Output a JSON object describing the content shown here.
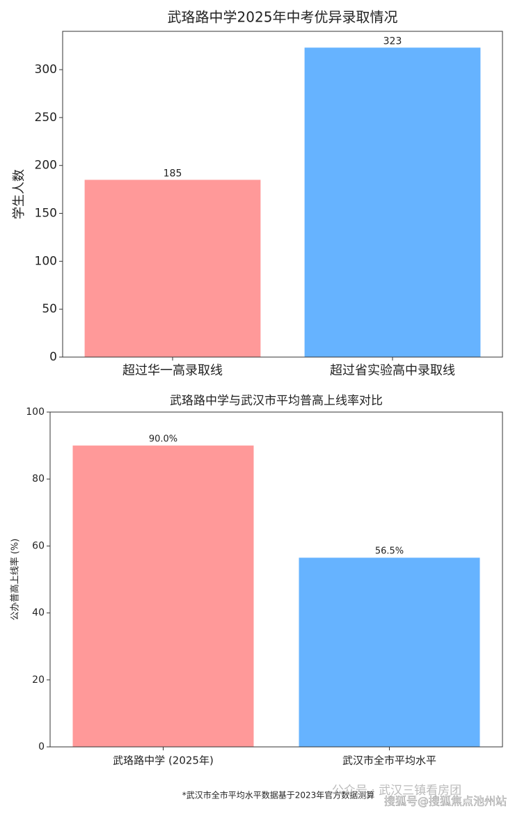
{
  "chart_data": [
    {
      "type": "bar",
      "title": "武珞路中学2025年中考优异录取情况",
      "y_label": "学生人数",
      "categories": [
        "超过华一高录取线",
        "超过省实验高中录取线"
      ],
      "values": [
        185,
        323
      ],
      "colors": [
        "#ff9999",
        "#66b3ff"
      ],
      "ylim": [
        0,
        340
      ],
      "yticks": [
        0,
        50,
        100,
        150,
        200,
        250,
        300
      ]
    },
    {
      "type": "bar",
      "title": "武珞路中学与武汉市平均普高上线率对比",
      "y_label": "公办普高上线率 (%)",
      "categories": [
        "武珞路中学 (2025年)",
        "武汉市全市平均水平"
      ],
      "values": [
        90.0,
        56.5
      ],
      "value_labels": [
        "90.0%",
        "56.5%"
      ],
      "colors": [
        "#ff9999",
        "#66b3ff"
      ],
      "ylim": [
        0,
        100
      ],
      "yticks": [
        0,
        20,
        40,
        60,
        80,
        100
      ]
    }
  ],
  "footnote": "*武汉市全市平均水平数据基于2023年官方数据测算",
  "watermarks": [
    "公众号 · 武汉三镇看房团",
    "搜狐号@搜狐焦点池州站"
  ]
}
